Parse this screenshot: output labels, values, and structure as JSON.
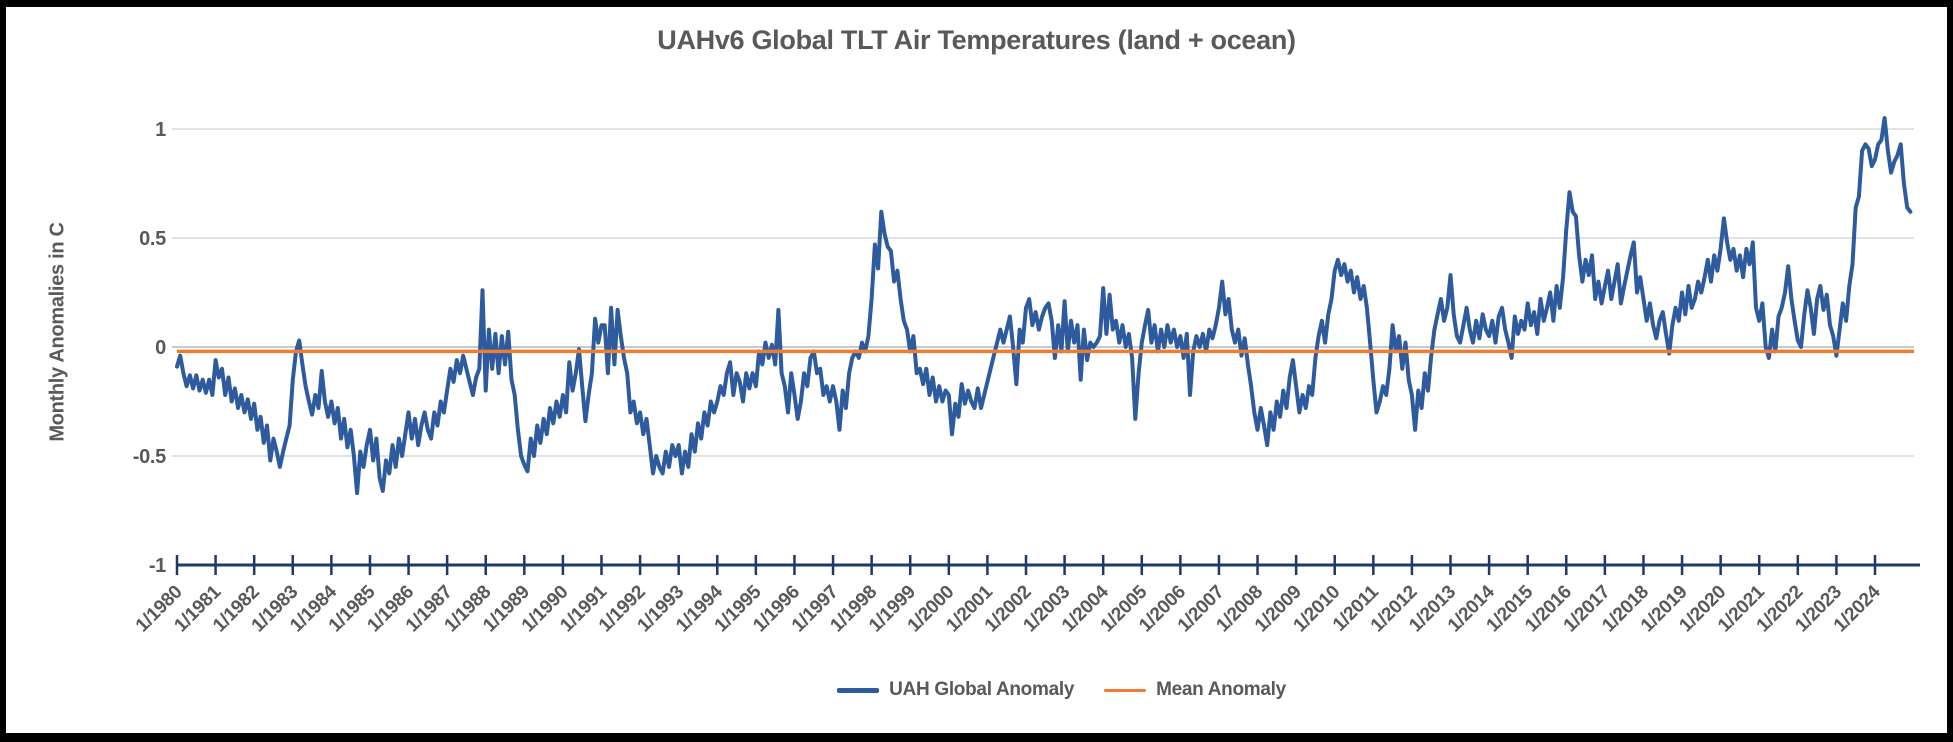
{
  "title": "UAHv6 Global TLT Air Temperatures (land + ocean)",
  "y_axis": {
    "title": "Monthly Anomalies in C"
  },
  "chart_data": {
    "type": "line",
    "title": "UAHv6 Global TLT Air Temperatures (land + ocean)",
    "xlabel": "",
    "ylabel": "Monthly Anomalies in C",
    "ylim": [
      -1,
      1.1
    ],
    "grid": "horizontal",
    "gridline_values": [
      1,
      0.5,
      0,
      -0.5
    ],
    "y_ticks": [
      {
        "label": "1",
        "value": 1
      },
      {
        "label": "0.5",
        "value": 0.5
      },
      {
        "label": "0",
        "value": 0
      },
      {
        "label": "-0.5",
        "value": -0.5
      },
      {
        "label": "-1",
        "value": -1
      }
    ],
    "x_start": "1980-01",
    "x_interval": "monthly",
    "x_end": "2024-12",
    "x_tick_labels": [
      "1/1980",
      "1/1981",
      "1/1982",
      "1/1983",
      "1/1984",
      "1/1985",
      "1/1986",
      "1/1987",
      "1/1988",
      "1/1989",
      "1/1990",
      "1/1991",
      "1/1992",
      "1/1993",
      "1/1994",
      "1/1995",
      "1/1996",
      "1/1997",
      "1/1998",
      "1/1999",
      "1/2000",
      "1/2001",
      "1/2002",
      "1/2003",
      "1/2004",
      "1/2005",
      "1/2006",
      "1/2007",
      "1/2008",
      "1/2009",
      "1/2010",
      "1/2011",
      "1/2012",
      "1/2013",
      "1/2014",
      "1/2015",
      "1/2016",
      "1/2017",
      "1/2018",
      "1/2019",
      "1/2020",
      "1/2021",
      "1/2022",
      "1/2023",
      "1/2024"
    ],
    "legend_position": "bottom",
    "series": [
      {
        "name": "UAH Global Anomaly",
        "color": "#2E5B9E",
        "values": [
          -0.09,
          -0.04,
          -0.12,
          -0.18,
          -0.13,
          -0.19,
          -0.13,
          -0.2,
          -0.15,
          -0.21,
          -0.15,
          -0.22,
          -0.06,
          -0.14,
          -0.1,
          -0.22,
          -0.14,
          -0.25,
          -0.19,
          -0.28,
          -0.22,
          -0.3,
          -0.24,
          -0.33,
          -0.26,
          -0.38,
          -0.32,
          -0.44,
          -0.36,
          -0.52,
          -0.42,
          -0.48,
          -0.55,
          -0.48,
          -0.42,
          -0.36,
          -0.15,
          -0.02,
          0.03,
          -0.08,
          -0.18,
          -0.25,
          -0.31,
          -0.22,
          -0.28,
          -0.11,
          -0.25,
          -0.32,
          -0.25,
          -0.35,
          -0.28,
          -0.42,
          -0.33,
          -0.46,
          -0.38,
          -0.5,
          -0.67,
          -0.48,
          -0.55,
          -0.45,
          -0.38,
          -0.52,
          -0.42,
          -0.6,
          -0.66,
          -0.52,
          -0.58,
          -0.45,
          -0.55,
          -0.42,
          -0.5,
          -0.4,
          -0.3,
          -0.42,
          -0.33,
          -0.45,
          -0.36,
          -0.3,
          -0.38,
          -0.42,
          -0.3,
          -0.36,
          -0.25,
          -0.3,
          -0.2,
          -0.1,
          -0.16,
          -0.06,
          -0.12,
          -0.04,
          -0.1,
          -0.16,
          -0.22,
          -0.14,
          -0.1,
          0.26,
          -0.2,
          0.08,
          -0.1,
          0.06,
          -0.12,
          0.05,
          -0.08,
          0.07,
          -0.15,
          -0.22,
          -0.38,
          -0.5,
          -0.54,
          -0.57,
          -0.42,
          -0.5,
          -0.36,
          -0.44,
          -0.33,
          -0.4,
          -0.28,
          -0.35,
          -0.25,
          -0.32,
          -0.22,
          -0.3,
          -0.07,
          -0.2,
          -0.12,
          -0.01,
          -0.18,
          -0.34,
          -0.22,
          -0.12,
          0.13,
          0.02,
          0.1,
          0.1,
          -0.12,
          0.18,
          -0.08,
          0.17,
          0.05,
          -0.05,
          -0.12,
          -0.3,
          -0.25,
          -0.35,
          -0.3,
          -0.4,
          -0.33,
          -0.45,
          -0.58,
          -0.5,
          -0.55,
          -0.58,
          -0.48,
          -0.55,
          -0.45,
          -0.5,
          -0.45,
          -0.58,
          -0.48,
          -0.55,
          -0.4,
          -0.48,
          -0.35,
          -0.42,
          -0.3,
          -0.36,
          -0.25,
          -0.3,
          -0.25,
          -0.18,
          -0.22,
          -0.12,
          -0.07,
          -0.22,
          -0.12,
          -0.16,
          -0.25,
          -0.12,
          -0.19,
          -0.12,
          -0.18,
          -0.02,
          -0.08,
          0.02,
          -0.05,
          0.01,
          -0.08,
          0.17,
          -0.12,
          -0.18,
          -0.3,
          -0.12,
          -0.22,
          -0.33,
          -0.25,
          -0.12,
          -0.18,
          -0.05,
          -0.02,
          -0.12,
          -0.1,
          -0.22,
          -0.18,
          -0.25,
          -0.18,
          -0.25,
          -0.38,
          -0.2,
          -0.28,
          -0.12,
          -0.05,
          -0.02,
          -0.05,
          0.02,
          -0.02,
          0.05,
          0.22,
          0.47,
          0.36,
          0.62,
          0.52,
          0.46,
          0.44,
          0.3,
          0.35,
          0.22,
          0.12,
          0.08,
          -0.02,
          0.05,
          -0.12,
          -0.1,
          -0.17,
          -0.1,
          -0.22,
          -0.14,
          -0.25,
          -0.18,
          -0.25,
          -0.2,
          -0.22,
          -0.4,
          -0.26,
          -0.32,
          -0.17,
          -0.26,
          -0.2,
          -0.25,
          -0.28,
          -0.19,
          -0.28,
          -0.22,
          -0.16,
          -0.1,
          -0.04,
          0.02,
          0.08,
          0.02,
          0.08,
          0.14,
          0.0,
          -0.17,
          0.08,
          0.02,
          0.18,
          0.22,
          0.1,
          0.16,
          0.08,
          0.14,
          0.18,
          0.2,
          0.12,
          -0.05,
          0.1,
          -0.02,
          0.21,
          -0.02,
          0.12,
          0.02,
          0.1,
          -0.15,
          0.08,
          -0.06,
          0.02,
          0.0,
          0.02,
          0.05,
          0.27,
          0.06,
          0.24,
          0.08,
          0.12,
          0.02,
          0.1,
          0.0,
          0.06,
          -0.05,
          -0.33,
          -0.12,
          0.02,
          0.1,
          0.17,
          0.02,
          0.1,
          -0.02,
          0.08,
          0.0,
          0.1,
          0.02,
          0.08,
          0.0,
          0.05,
          -0.05,
          0.06,
          -0.22,
          -0.02,
          0.05,
          0.0,
          0.06,
          -0.02,
          0.08,
          0.04,
          0.1,
          0.18,
          0.3,
          0.15,
          0.22,
          0.08,
          0.02,
          0.08,
          -0.04,
          0.04,
          -0.08,
          -0.18,
          -0.3,
          -0.38,
          -0.28,
          -0.36,
          -0.45,
          -0.3,
          -0.38,
          -0.25,
          -0.32,
          -0.2,
          -0.28,
          -0.14,
          -0.06,
          -0.18,
          -0.3,
          -0.22,
          -0.28,
          -0.18,
          -0.22,
          -0.05,
          0.05,
          0.12,
          0.02,
          0.15,
          0.22,
          0.35,
          0.4,
          0.33,
          0.38,
          0.3,
          0.35,
          0.25,
          0.32,
          0.22,
          0.28,
          0.18,
          0.02,
          -0.15,
          -0.3,
          -0.25,
          -0.18,
          -0.22,
          -0.1,
          0.1,
          -0.02,
          0.05,
          -0.1,
          0.02,
          -0.15,
          -0.22,
          -0.38,
          -0.2,
          -0.28,
          -0.12,
          -0.2,
          -0.04,
          0.08,
          0.15,
          0.22,
          0.12,
          0.18,
          0.33,
          0.15,
          0.05,
          0.02,
          0.1,
          0.18,
          0.08,
          0.02,
          0.12,
          0.04,
          0.15,
          0.08,
          0.05,
          0.12,
          0.02,
          0.14,
          0.18,
          0.08,
          0.02,
          -0.05,
          0.14,
          0.06,
          0.12,
          0.08,
          0.2,
          0.1,
          0.16,
          0.06,
          0.22,
          0.12,
          0.18,
          0.25,
          0.12,
          0.28,
          0.18,
          0.32,
          0.54,
          0.71,
          0.62,
          0.6,
          0.42,
          0.3,
          0.4,
          0.33,
          0.42,
          0.22,
          0.3,
          0.2,
          0.28,
          0.35,
          0.22,
          0.3,
          0.38,
          0.2,
          0.28,
          0.35,
          0.42,
          0.48,
          0.25,
          0.32,
          0.22,
          0.12,
          0.2,
          0.1,
          0.04,
          0.12,
          0.16,
          0.06,
          -0.03,
          0.1,
          0.18,
          0.12,
          0.25,
          0.15,
          0.28,
          0.18,
          0.22,
          0.3,
          0.25,
          0.32,
          0.4,
          0.3,
          0.42,
          0.35,
          0.45,
          0.59,
          0.48,
          0.4,
          0.45,
          0.35,
          0.42,
          0.32,
          0.45,
          0.38,
          0.48,
          0.18,
          0.12,
          0.2,
          0.0,
          -0.05,
          0.08,
          -0.02,
          0.14,
          0.18,
          0.25,
          0.37,
          0.22,
          0.12,
          0.03,
          0.0,
          0.15,
          0.26,
          0.18,
          0.06,
          0.22,
          0.28,
          0.17,
          0.24,
          0.1,
          0.05,
          -0.04,
          0.08,
          0.2,
          0.12,
          0.28,
          0.38,
          0.64,
          0.69,
          0.9,
          0.93,
          0.91,
          0.83,
          0.86,
          0.93,
          0.95,
          1.05,
          0.9,
          0.8,
          0.85,
          0.88,
          0.93,
          0.75,
          0.64,
          0.62
        ]
      },
      {
        "name": "Mean Anomaly",
        "type": "hline",
        "color": "#ED7D31",
        "value": -0.02
      }
    ]
  },
  "colors": {
    "series_blue": "#2E5B9E",
    "mean_orange": "#ED7D31",
    "axis_navy": "#1F3864",
    "gridline": "#D9D9D9",
    "zero_gridline": "#C9C9C9",
    "label_gray": "#595959",
    "border": "#000000",
    "background": "#FFFFFF"
  }
}
